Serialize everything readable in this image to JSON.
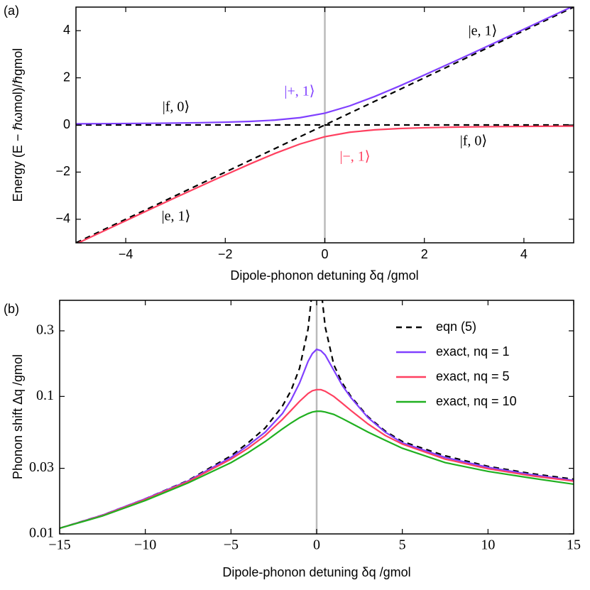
{
  "chart_data": [
    {
      "type": "line",
      "label": "(a)",
      "x_label": "Dipole-phonon detuning δq /gmol",
      "y_label": "Energy (E − ℏωmol)/ℏgmol",
      "x": [
        -5,
        -4.5,
        -4,
        -3.5,
        -3,
        -2.5,
        -2,
        -1.5,
        -1,
        -0.5,
        0,
        0.5,
        1,
        1.5,
        2,
        2.5,
        3,
        3.5,
        4,
        4.5,
        5
      ],
      "series": [
        {
          "color": "#000000",
          "dash": true,
          "values": [
            -5,
            -4.5,
            -4,
            -3.5,
            -3,
            -2.5,
            -2,
            -1.5,
            -1,
            -0.5,
            0,
            0.5,
            1,
            1.5,
            2,
            2.5,
            3,
            3.5,
            4,
            4.5,
            5
          ]
        },
        {
          "color": "#000000",
          "dash": true,
          "values": [
            0,
            0,
            0,
            0,
            0,
            0,
            0,
            0,
            0,
            0,
            0,
            0,
            0,
            0,
            0,
            0,
            0,
            0,
            0,
            0,
            0
          ]
        },
        {
          "color": "#8040ff",
          "values": [
            0.05,
            0.055,
            0.062,
            0.07,
            0.081,
            0.096,
            0.118,
            0.151,
            0.207,
            0.309,
            0.5,
            0.809,
            1.207,
            1.651,
            2.118,
            2.596,
            3.081,
            3.57,
            4.062,
            4.555,
            5.05
          ]
        },
        {
          "color": "#ff4060",
          "values": [
            -5.05,
            -4.555,
            -4.062,
            -3.57,
            -3.081,
            -2.596,
            -2.118,
            -1.651,
            -1.207,
            -0.809,
            -0.5,
            -0.309,
            -0.207,
            -0.151,
            -0.118,
            -0.096,
            -0.081,
            -0.07,
            -0.062,
            -0.055,
            -0.05
          ]
        }
      ],
      "annotations": [
        {
          "text": "|f, 0⟩",
          "color": "#000000"
        },
        {
          "text": "|+, 1⟩",
          "color": "#8040ff"
        },
        {
          "text": "|e, 1⟩",
          "color": "#000000"
        },
        {
          "text": "|f, 0⟩",
          "color": "#000000"
        },
        {
          "text": "|−, 1⟩",
          "color": "#ff4060"
        },
        {
          "text": "|e, 1⟩",
          "color": "#000000"
        }
      ],
      "vline": 0,
      "xlim": [
        -5,
        5
      ],
      "ylim": [
        -5,
        5
      ],
      "xticks": [
        {
          "value": -4,
          "label": "−4"
        },
        {
          "value": -2,
          "label": "−2"
        },
        0,
        2,
        4
      ],
      "yticks": [
        {
          "value": -4,
          "label": "−4"
        },
        {
          "value": -2,
          "label": "−2"
        },
        0,
        2,
        4
      ]
    },
    {
      "type": "line",
      "label": "(b)",
      "x_label": "Dipole-phonon detuning δq /gmol",
      "y_label": "Phonon shift Δq /gmol",
      "x": [
        -15,
        -12.5,
        -10,
        -7.5,
        -5,
        -4,
        -3,
        -2,
        -1.5,
        -1,
        -0.5,
        -0.25,
        0,
        0.25,
        0.5,
        1,
        1.5,
        2,
        3,
        4,
        5,
        7.5,
        10,
        12.5,
        15
      ],
      "series": [
        {
          "name": "eqn (5)",
          "color": "#000000",
          "dash": true,
          "values": [
            0.011,
            0.0137,
            0.018,
            0.0245,
            0.037,
            0.046,
            0.059,
            0.085,
            0.11,
            0.16,
            0.31,
            0.6,
            null,
            0.62,
            0.32,
            0.17,
            0.125,
            0.1,
            0.071,
            0.056,
            0.047,
            0.037,
            0.031,
            0.0275,
            0.025
          ]
        },
        {
          "name": "exact, nq = 1",
          "color": "#8040ff",
          "values": [
            0.011,
            0.0137,
            0.018,
            0.0243,
            0.036,
            0.044,
            0.055,
            0.075,
            0.094,
            0.125,
            0.18,
            0.205,
            0.22,
            0.215,
            0.2,
            0.155,
            0.12,
            0.098,
            0.07,
            0.055,
            0.046,
            0.036,
            0.0305,
            0.027,
            0.0245
          ]
        },
        {
          "name": "exact, nq = 5",
          "color": "#ff4060",
          "values": [
            0.011,
            0.0136,
            0.0178,
            0.024,
            0.035,
            0.042,
            0.052,
            0.068,
            0.079,
            0.092,
            0.105,
            0.11,
            0.112,
            0.112,
            0.109,
            0.1,
            0.089,
            0.079,
            0.063,
            0.052,
            0.045,
            0.035,
            0.0298,
            0.0265,
            0.0242
          ]
        },
        {
          "name": "exact, nq = 10",
          "color": "#20b020",
          "values": [
            0.011,
            0.0135,
            0.0175,
            0.0235,
            0.033,
            0.039,
            0.047,
            0.058,
            0.064,
            0.07,
            0.075,
            0.077,
            0.078,
            0.078,
            0.077,
            0.074,
            0.069,
            0.064,
            0.055,
            0.048,
            0.042,
            0.033,
            0.0285,
            0.0255,
            0.023
          ]
        }
      ],
      "vline": 0,
      "ylog": true,
      "legend": "upper right",
      "xlim": [
        -15,
        15
      ],
      "ylim": [
        0.01,
        0.5
      ],
      "xticks": [
        {
          "value": -15,
          "label": "−15"
        },
        {
          "value": -10,
          "label": "−10"
        },
        {
          "value": -5,
          "label": "−5"
        },
        0,
        5,
        10,
        15
      ],
      "yticks": [
        0.01,
        0.03,
        0.1,
        0.3
      ]
    }
  ]
}
